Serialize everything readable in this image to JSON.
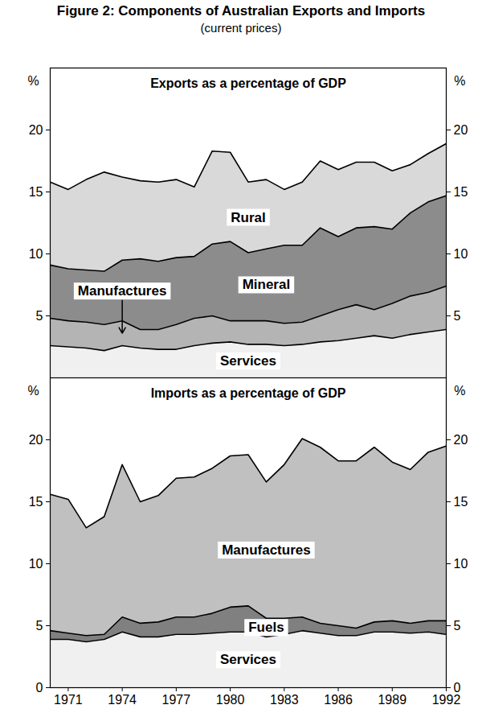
{
  "title": "Figure 2: Components of Australian Exports and Imports",
  "subtitle": "(current prices)",
  "chart_data": [
    {
      "type": "area",
      "stacked": true,
      "title": "Exports as a percentage of GDP",
      "y_label": "%",
      "tick_labels": "y",
      "x": [
        1970,
        1971,
        1972,
        1973,
        1974,
        1975,
        1976,
        1977,
        1978,
        1979,
        1980,
        1981,
        1982,
        1983,
        1984,
        1985,
        1986,
        1987,
        1988,
        1989,
        1990,
        1991,
        1992
      ],
      "xlim": [
        1970,
        1992
      ],
      "ylim": [
        0,
        25
      ],
      "yticks": [
        5,
        10,
        15,
        20
      ],
      "series": [
        {
          "name": "Services",
          "color": "#f0f0f0",
          "values": [
            2.6,
            2.5,
            2.4,
            2.2,
            2.6,
            2.4,
            2.3,
            2.3,
            2.6,
            2.8,
            2.9,
            2.7,
            2.7,
            2.6,
            2.7,
            2.9,
            3.0,
            3.2,
            3.4,
            3.2,
            3.5,
            3.7,
            3.9
          ]
        },
        {
          "name": "Manufactures",
          "color": "#b4b4b4",
          "values": [
            2.2,
            2.1,
            2.1,
            2.1,
            2.0,
            1.5,
            1.6,
            2.0,
            2.2,
            2.2,
            1.7,
            1.9,
            1.9,
            1.8,
            1.8,
            2.1,
            2.5,
            2.7,
            2.1,
            2.8,
            3.1,
            3.2,
            3.5
          ]
        },
        {
          "name": "Mineral",
          "color": "#8c8c8c",
          "values": [
            4.3,
            4.2,
            4.2,
            4.3,
            4.9,
            5.7,
            5.5,
            5.4,
            5.0,
            5.8,
            6.4,
            5.5,
            5.8,
            6.3,
            6.2,
            7.1,
            5.9,
            6.2,
            6.7,
            6.0,
            6.7,
            7.3,
            7.3
          ]
        },
        {
          "name": "Rural",
          "color": "#d9d9d9",
          "values": [
            6.7,
            6.4,
            7.3,
            8.0,
            6.7,
            6.3,
            6.4,
            6.3,
            5.6,
            7.5,
            7.2,
            5.7,
            5.6,
            4.5,
            5.1,
            5.4,
            5.4,
            5.3,
            5.2,
            4.7,
            3.9,
            3.9,
            4.2
          ]
        }
      ]
    },
    {
      "type": "area",
      "stacked": true,
      "title": "Imports as a percentage of GDP",
      "y_label": "%",
      "x": [
        1970,
        1971,
        1972,
        1973,
        1974,
        1975,
        1976,
        1977,
        1978,
        1979,
        1980,
        1981,
        1982,
        1983,
        1984,
        1985,
        1986,
        1987,
        1988,
        1989,
        1990,
        1991,
        1992
      ],
      "xlim": [
        1970,
        1992
      ],
      "xticks": [
        1971,
        1974,
        1977,
        1980,
        1983,
        1986,
        1989,
        1992
      ],
      "ylim": [
        0,
        25
      ],
      "yticks": [
        0,
        5,
        10,
        15,
        20
      ],
      "series": [
        {
          "name": "Services",
          "color": "#f0f0f0",
          "values": [
            3.9,
            3.9,
            3.7,
            3.9,
            4.5,
            4.1,
            4.1,
            4.3,
            4.3,
            4.4,
            4.5,
            4.5,
            4.1,
            4.3,
            4.6,
            4.4,
            4.2,
            4.2,
            4.5,
            4.5,
            4.4,
            4.5,
            4.3
          ]
        },
        {
          "name": "Fuels",
          "color": "#808080",
          "values": [
            0.7,
            0.5,
            0.5,
            0.4,
            1.2,
            1.1,
            1.2,
            1.4,
            1.4,
            1.6,
            2.0,
            2.1,
            1.5,
            1.3,
            1.1,
            0.8,
            0.8,
            0.6,
            0.8,
            0.9,
            0.8,
            0.9,
            1.1
          ]
        },
        {
          "name": "Manufactures",
          "color": "#c0c0c0",
          "values": [
            11.0,
            10.8,
            8.7,
            9.5,
            12.3,
            9.8,
            10.2,
            11.2,
            11.3,
            11.7,
            12.2,
            12.2,
            11.0,
            12.4,
            14.4,
            14.2,
            13.3,
            13.5,
            14.1,
            12.8,
            12.4,
            13.6,
            14.1
          ]
        }
      ]
    }
  ]
}
